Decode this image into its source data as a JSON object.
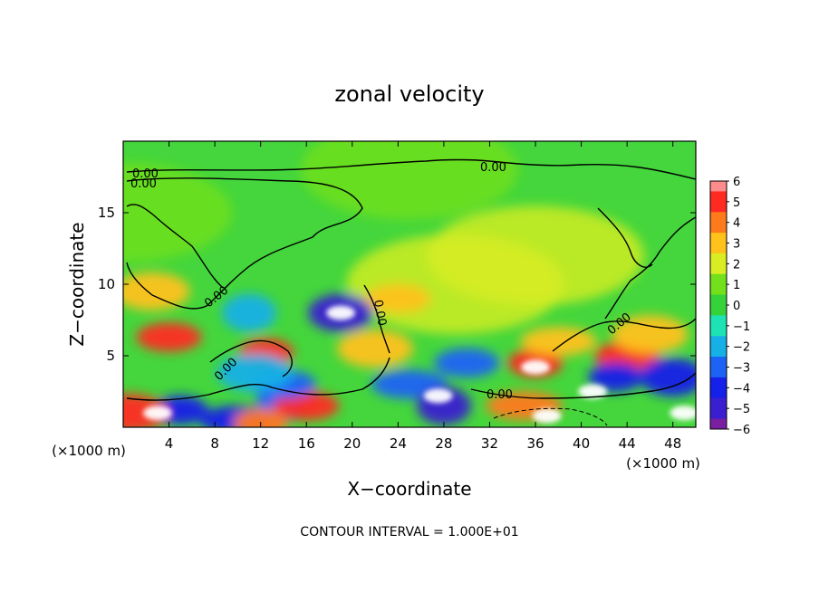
{
  "chart_data": {
    "type": "heatmap",
    "title": "zonal velocity",
    "xlabel": "X−coordinate",
    "ylabel": "Z−coordinate",
    "x_unit_left": "(×1000 m)",
    "x_unit_right": "(×1000 m)",
    "xlim": [
      0,
      50
    ],
    "ylim": [
      0,
      20
    ],
    "x_ticks": [
      "4",
      "8",
      "12",
      "16",
      "20",
      "24",
      "28",
      "32",
      "36",
      "40",
      "44",
      "48"
    ],
    "y_ticks": [
      "5",
      "10",
      "15"
    ],
    "colorbar": {
      "range": [
        -6,
        6
      ],
      "ticks": [
        "6",
        "5",
        "4",
        "3",
        "2",
        "1",
        "0",
        "−1",
        "−2",
        "−3",
        "−4",
        "−5",
        "−6"
      ]
    },
    "contour_label": "0.00",
    "footnote": "CONTOUR INTERVAL = 1.000E+01",
    "features": [
      {
        "x": 0,
        "z": 15,
        "value": 0.5
      },
      {
        "x": 25,
        "z": 18,
        "value": 1.0
      },
      {
        "x": 29,
        "z": 10,
        "value": 1.8
      },
      {
        "x": 36,
        "z": 12,
        "value": 1.5
      },
      {
        "x": 4,
        "z": 6.3,
        "value": 5.0
      },
      {
        "x": 2.5,
        "z": 9.5,
        "value": 3.0
      },
      {
        "x": 12.5,
        "z": 5.2,
        "value": 4.5
      },
      {
        "x": 19,
        "z": 8,
        "value": -5.5
      },
      {
        "x": 19,
        "z": 8,
        "value": -6.5
      },
      {
        "x": 11,
        "z": 8,
        "value": -2.5
      },
      {
        "x": 24,
        "z": 9,
        "value": 3.0
      },
      {
        "x": 22,
        "z": 5.5,
        "value": 3.0
      },
      {
        "x": 36,
        "z": 4.5,
        "value": 5.0
      },
      {
        "x": 36,
        "z": 4.2,
        "value": 7.0
      },
      {
        "x": 38,
        "z": 6,
        "value": 3.0
      },
      {
        "x": 41,
        "z": 2.5,
        "value": 6.5
      },
      {
        "x": 44,
        "z": 5,
        "value": 4.5
      },
      {
        "x": 46,
        "z": 6.5,
        "value": 3.0
      },
      {
        "x": 43,
        "z": 3.5,
        "value": -4.0
      },
      {
        "x": 48,
        "z": 3.5,
        "value": -4.5
      },
      {
        "x": 25,
        "z": 3,
        "value": -3.5
      },
      {
        "x": 28,
        "z": 1.5,
        "value": -5.0
      },
      {
        "x": 30,
        "z": 4.5,
        "value": -3.0
      },
      {
        "x": 27.5,
        "z": 2.2,
        "value": -6.5
      },
      {
        "x": 5,
        "z": 1.2,
        "value": -4.5
      },
      {
        "x": 3,
        "z": 1,
        "value": -6.5
      },
      {
        "x": 10,
        "z": 0.5,
        "value": -4.0
      },
      {
        "x": 14,
        "z": 1.8,
        "value": -3.0
      },
      {
        "x": 16,
        "z": 1.5,
        "value": 4.5
      },
      {
        "x": 0.5,
        "z": 1,
        "value": 4.5
      },
      {
        "x": 12,
        "z": 0.3,
        "value": 4.0
      },
      {
        "x": 37,
        "z": 0.8,
        "value": 6.5
      },
      {
        "x": 35,
        "z": 1.5,
        "value": 3.5
      },
      {
        "x": 49,
        "z": 1,
        "value": 6.5
      },
      {
        "x": 14,
        "z": 3,
        "value": -3.0
      },
      {
        "x": 11.5,
        "z": 3.8,
        "value": -2.5
      }
    ]
  }
}
